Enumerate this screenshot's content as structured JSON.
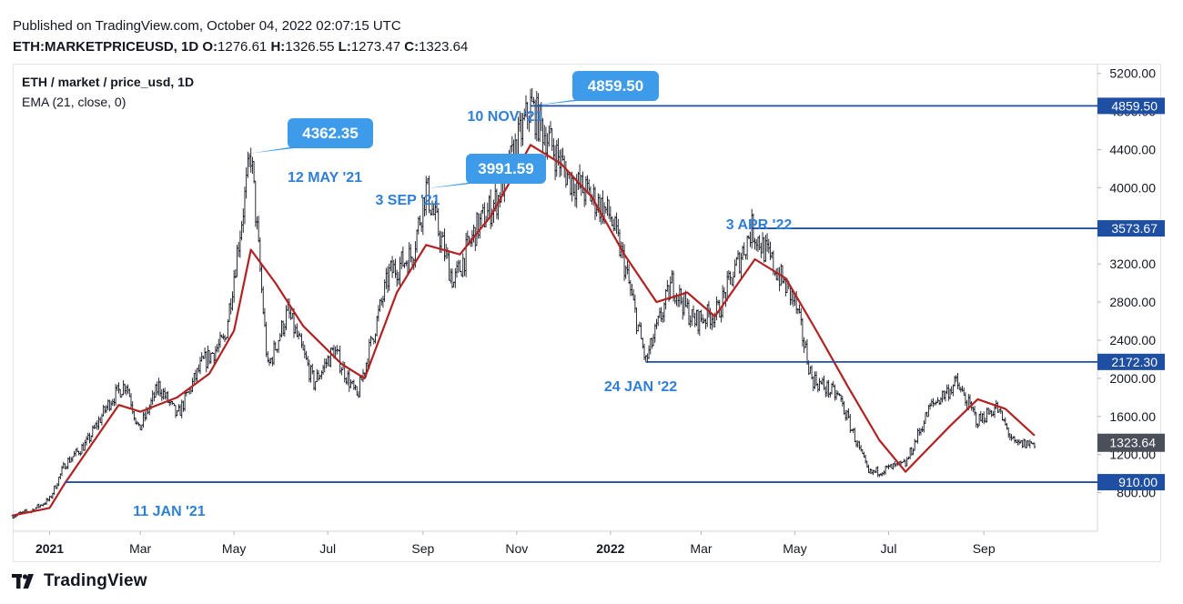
{
  "header": {
    "published": "Published on TradingView.com, October 04, 2022 02:07:15 UTC",
    "symbol": "ETH:MARKETPRICEUSD, 1D",
    "o_label": "O:",
    "o": "1276.61",
    "h_label": "H:",
    "h": "1326.55",
    "l_label": "L:",
    "l": "1273.47",
    "c_label": "C:",
    "c": "1323.64"
  },
  "legend": {
    "series": "ETH / market / price_usd, 1D",
    "indicator": "EMA (21, close, 0)"
  },
  "footer": {
    "brand": "TradingView"
  },
  "colors": {
    "candle": "#131722",
    "ema": "#b22222",
    "level": "#1e4fa3",
    "accent": "#2f7fd6",
    "callout": "#3d9be9",
    "last_price_bg": "#4a4f5a"
  },
  "icons": {
    "logo": "tradingview-logo-icon"
  },
  "chart_data": {
    "type": "line",
    "title": "ETH / market / price_usd, 1D",
    "ylim": [
      600,
      5400
    ],
    "y_ticks": [
      "800.00",
      "1200.00",
      "1600.00",
      "2000.00",
      "2400.00",
      "2800.00",
      "3200.00",
      "3600.00",
      "4000.00",
      "4400.00",
      "4800.00",
      "5200.00"
    ],
    "x_ticks": [
      "2021",
      "Mar",
      "May",
      "Jul",
      "Sep",
      "Nov",
      "2022",
      "Mar",
      "May",
      "Jul",
      "Sep"
    ],
    "x_tick_dates": [
      "2021-01-01",
      "2021-03-01",
      "2021-05-01",
      "2021-07-01",
      "2021-09-01",
      "2021-11-01",
      "2022-01-01",
      "2022-03-01",
      "2022-05-01",
      "2022-07-01",
      "2022-09-01"
    ],
    "x_range": [
      "2020-12-08",
      "2022-11-08"
    ],
    "series": [
      {
        "name": "ETH / market / price_usd, 1D",
        "x": [
          "2020-12-08",
          "2020-12-20",
          "2021-01-01",
          "2021-01-11",
          "2021-01-25",
          "2021-02-10",
          "2021-02-20",
          "2021-02-28",
          "2021-03-13",
          "2021-03-25",
          "2021-04-10",
          "2021-04-25",
          "2021-05-12",
          "2021-05-23",
          "2021-06-05",
          "2021-06-22",
          "2021-07-05",
          "2021-07-20",
          "2021-08-10",
          "2021-08-25",
          "2021-09-03",
          "2021-09-21",
          "2021-10-05",
          "2021-10-20",
          "2021-11-10",
          "2021-11-25",
          "2021-12-05",
          "2021-12-20",
          "2022-01-01",
          "2022-01-10",
          "2022-01-24",
          "2022-02-10",
          "2022-02-24",
          "2022-03-12",
          "2022-04-03",
          "2022-04-20",
          "2022-05-01",
          "2022-05-12",
          "2022-05-30",
          "2022-06-18",
          "2022-06-30",
          "2022-07-12",
          "2022-07-28",
          "2022-08-14",
          "2022-08-28",
          "2022-09-09",
          "2022-09-21",
          "2022-10-04"
        ],
        "values": [
          560,
          610,
          730,
          1100,
          1320,
          1780,
          1950,
          1450,
          1920,
          1600,
          2150,
          2400,
          4362.35,
          2100,
          2700,
          1950,
          2300,
          1800,
          3100,
          3300,
          3991.59,
          3000,
          3550,
          3900,
          4859.5,
          4400,
          4100,
          3900,
          3700,
          3200,
          2172.3,
          3000,
          2600,
          2700,
          3573.67,
          3100,
          2800,
          2000,
          1800,
          1000,
          1050,
          1100,
          1700,
          1950,
          1550,
          1700,
          1300,
          1323.64
        ]
      },
      {
        "name": "EMA (21, close, 0)",
        "x": [
          "2020-12-08",
          "2021-01-01",
          "2021-01-11",
          "2021-02-15",
          "2021-03-01",
          "2021-03-25",
          "2021-04-15",
          "2021-05-01",
          "2021-05-12",
          "2021-05-28",
          "2021-06-15",
          "2021-07-10",
          "2021-07-25",
          "2021-08-15",
          "2021-09-03",
          "2021-09-25",
          "2021-10-15",
          "2021-11-10",
          "2021-11-30",
          "2021-12-20",
          "2022-01-10",
          "2022-01-31",
          "2022-02-20",
          "2022-03-10",
          "2022-04-05",
          "2022-04-25",
          "2022-05-15",
          "2022-06-05",
          "2022-06-25",
          "2022-07-12",
          "2022-08-10",
          "2022-08-28",
          "2022-09-15",
          "2022-10-04"
        ],
        "values": [
          560,
          640,
          900,
          1720,
          1650,
          1800,
          2050,
          2500,
          3350,
          3000,
          2550,
          2150,
          2000,
          2900,
          3400,
          3300,
          3700,
          4450,
          4250,
          3900,
          3300,
          2800,
          2900,
          2650,
          3250,
          3050,
          2500,
          1900,
          1350,
          1020,
          1500,
          1780,
          1680,
          1400
        ]
      }
    ],
    "levels": [
      {
        "value": 4859.5,
        "label": "4859.50",
        "start": "2021-11-10",
        "date_label": "10 NOV '21"
      },
      {
        "value": 3573.67,
        "label": "3573.67",
        "start": "2022-04-03",
        "date_label": "3 APR '22"
      },
      {
        "value": 2172.3,
        "label": "2172.30",
        "start": "2022-01-24",
        "date_label": "24 JAN '22"
      },
      {
        "value": 910.0,
        "label": "910.00",
        "start": "2021-01-11",
        "date_label": "11 JAN '21"
      }
    ],
    "callouts": [
      {
        "value": 4362.35,
        "label": "4362.35",
        "date": "2021-05-12",
        "date_label": "12 MAY '21"
      },
      {
        "value": 3991.59,
        "label": "3991.59",
        "date": "2021-09-03",
        "date_label": "3 SEP '21"
      },
      {
        "value": 4859.5,
        "label": "4859.50",
        "date": "2021-11-10",
        "date_label": ""
      }
    ],
    "last_price": {
      "value": 1323.64,
      "label": "1323.64"
    }
  }
}
